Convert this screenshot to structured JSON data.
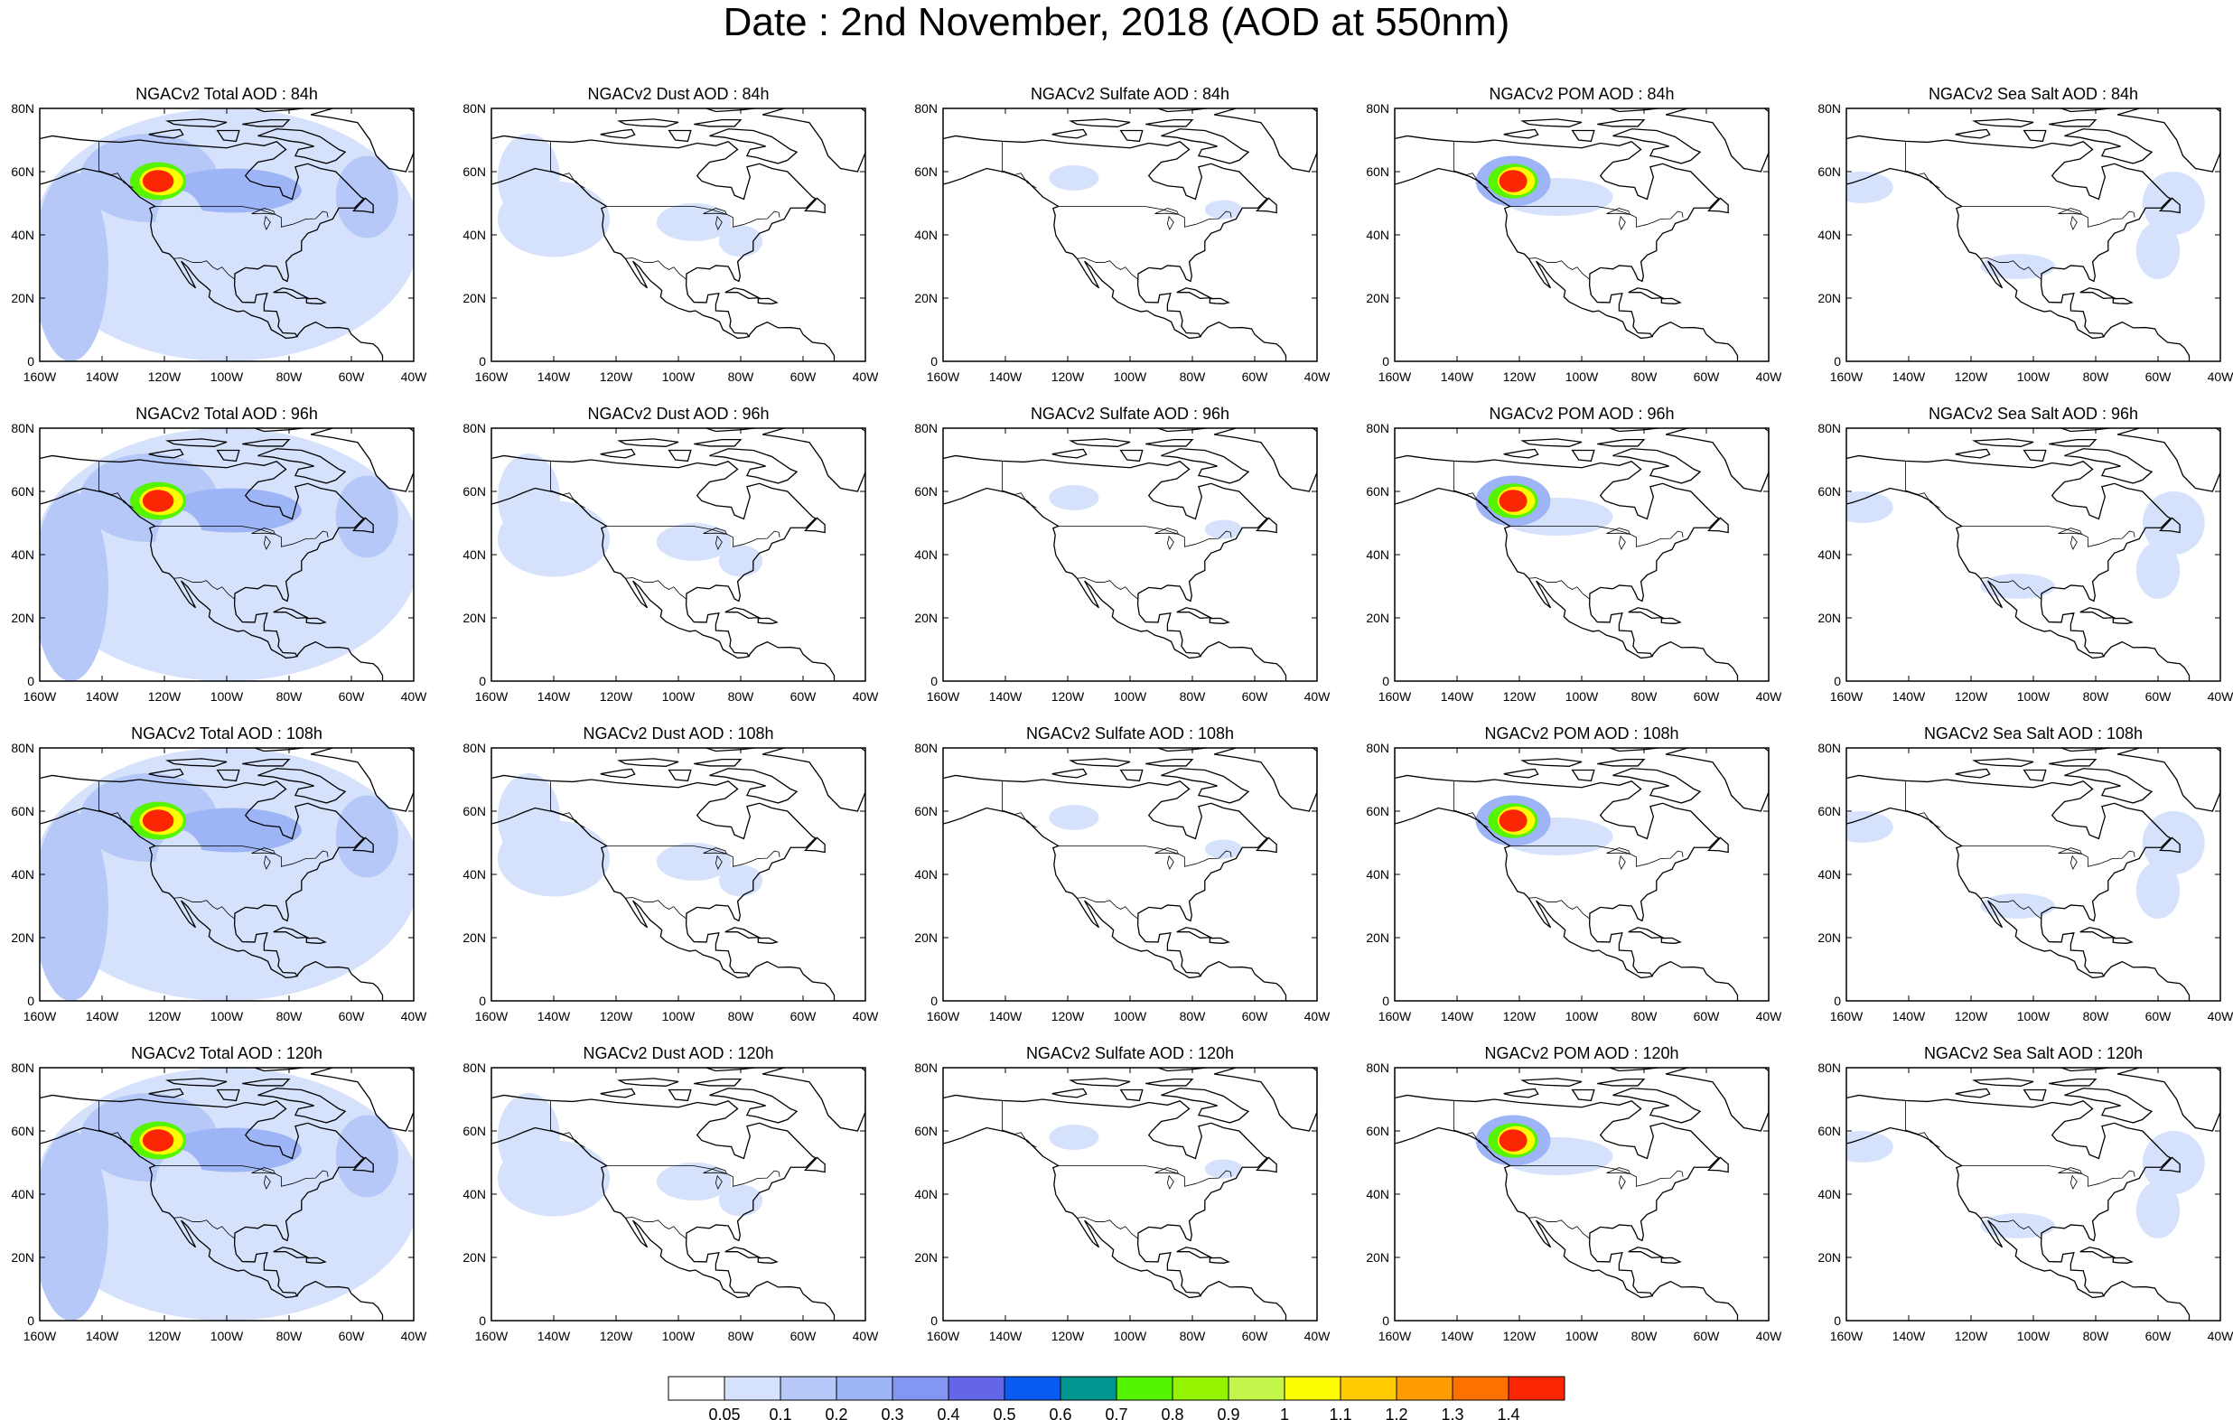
{
  "title": "Date : 2nd November, 2018 (AOD at 550nm)",
  "panels": [
    {
      "title": "NGACv2 Total AOD : 84h",
      "species": "total"
    },
    {
      "title": "NGACv2 Dust AOD : 84h",
      "species": "dust"
    },
    {
      "title": "NGACv2 Sulfate AOD : 84h",
      "species": "sulfate"
    },
    {
      "title": "NGACv2 POM AOD : 84h",
      "species": "pom"
    },
    {
      "title": "NGACv2 Sea Salt AOD : 84h",
      "species": "seasalt"
    },
    {
      "title": "NGACv2 Total AOD : 96h",
      "species": "total"
    },
    {
      "title": "NGACv2 Dust AOD : 96h",
      "species": "dust"
    },
    {
      "title": "NGACv2 Sulfate AOD : 96h",
      "species": "sulfate"
    },
    {
      "title": "NGACv2 POM AOD : 96h",
      "species": "pom"
    },
    {
      "title": "NGACv2 Sea Salt AOD : 96h",
      "species": "seasalt"
    },
    {
      "title": "NGACv2 Total AOD : 108h",
      "species": "total"
    },
    {
      "title": "NGACv2 Dust AOD : 108h",
      "species": "dust"
    },
    {
      "title": "NGACv2 Sulfate AOD : 108h",
      "species": "sulfate"
    },
    {
      "title": "NGACv2 POM AOD : 108h",
      "species": "pom"
    },
    {
      "title": "NGACv2 Sea Salt AOD : 108h",
      "species": "seasalt"
    },
    {
      "title": "NGACv2 Total AOD : 120h",
      "species": "total"
    },
    {
      "title": "NGACv2 Dust AOD : 120h",
      "species": "dust"
    },
    {
      "title": "NGACv2 Sulfate AOD : 120h",
      "species": "sulfate"
    },
    {
      "title": "NGACv2 POM AOD : 120h",
      "species": "pom"
    },
    {
      "title": "NGACv2 Sea Salt  AOD : 120h",
      "species": "seasalt"
    }
  ],
  "axes": {
    "lon_ticks": [
      "160W",
      "140W",
      "120W",
      "100W",
      "80W",
      "60W",
      "40W"
    ],
    "lat_ticks": [
      "0",
      "20N",
      "40N",
      "60N",
      "80N"
    ],
    "lon_range": [
      -160,
      -40
    ],
    "lat_range": [
      0,
      80
    ]
  },
  "colorbar": {
    "labels": [
      "0.05",
      "0.1",
      "0.2",
      "0.3",
      "0.4",
      "0.5",
      "0.6",
      "0.7",
      "0.8",
      "0.9",
      "1",
      "1.1",
      "1.2",
      "1.3",
      "1.4"
    ],
    "colors": [
      "#ffffff",
      "#d6e2fb",
      "#b5c8f8",
      "#9db4f6",
      "#8396f2",
      "#6466ea",
      "#0a5bf2",
      "#00958f",
      "#55f400",
      "#93f300",
      "#c4f54a",
      "#fdfc00",
      "#fecb00",
      "#fe9c00",
      "#fd7100",
      "#fb2604"
    ]
  }
}
